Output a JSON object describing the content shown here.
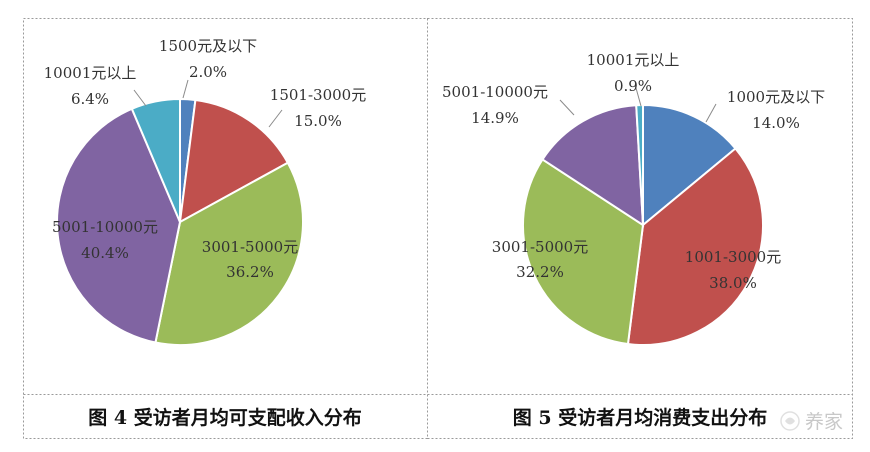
{
  "chart_data": [
    {
      "type": "pie",
      "title": "图 4  受访者月均可支配收入分布",
      "categories": [
        "1500元及以下",
        "1501-3000元",
        "3001-5000元",
        "5001-10000元",
        "10001元以上"
      ],
      "values": [
        2.0,
        15.0,
        36.2,
        40.4,
        6.4
      ],
      "value_labels": [
        "2.0%",
        "15.0%",
        "36.2%",
        "40.4%",
        "6.4%"
      ],
      "colors": [
        "#4f81bd",
        "#c0504d",
        "#9bbb59",
        "#8064a2",
        "#4bacc6"
      ],
      "legend": "none",
      "start": "12 o'clock",
      "direction": "clockwise"
    },
    {
      "type": "pie",
      "title": "图 5  受访者月均消费支出分布",
      "categories": [
        "1000元及以下",
        "1001-3000元",
        "3001-5000元",
        "5001-10000元",
        "10001元以上"
      ],
      "values": [
        14.0,
        38.0,
        32.2,
        14.9,
        0.9
      ],
      "value_labels": [
        "14.0%",
        "38.0%",
        "32.2%",
        "14.9%",
        "0.9%"
      ],
      "colors": [
        "#4f81bd",
        "#c0504d",
        "#9bbb59",
        "#8064a2",
        "#4bacc6"
      ],
      "legend": "none",
      "start": "12 o'clock",
      "direction": "clockwise"
    }
  ],
  "watermark": "养家"
}
